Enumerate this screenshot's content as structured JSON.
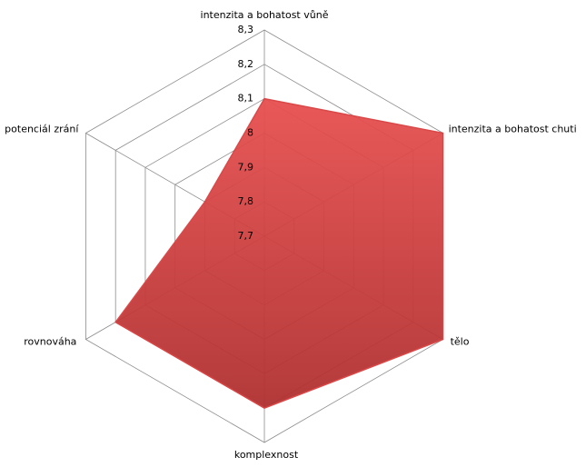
{
  "chart_data": {
    "type": "radar",
    "categories": [
      "intenzita a bohatost vůně",
      "intenzita a bohatost chuti",
      "tělo",
      "komplexnost",
      "rovnováha",
      "potenciál zrání"
    ],
    "series": [
      {
        "color": "#d94040",
        "values": [
          8.1,
          8.3,
          8.3,
          8.2,
          8.2,
          7.9
        ]
      }
    ],
    "rlim": [
      7.7,
      8.3
    ],
    "rticks": [
      {
        "value": 7.7,
        "label": "7,7"
      },
      {
        "value": 7.8,
        "label": "7,8"
      },
      {
        "value": 7.9,
        "label": "7,9"
      },
      8,
      {
        "value": 8.1,
        "label": "8,1"
      },
      {
        "value": 8.2,
        "label": "8,2"
      },
      {
        "value": 8.3,
        "label": "8,3"
      }
    ],
    "grid": true
  }
}
